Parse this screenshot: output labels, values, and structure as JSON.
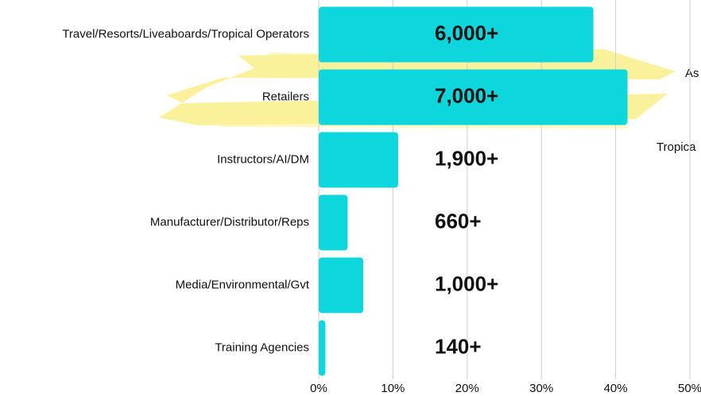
{
  "chart_data": {
    "type": "bar",
    "orientation": "horizontal",
    "categories": [
      "Travel/Resorts/Liveaboards/Tropical Operators",
      "Retailers",
      "Instructors/AI/DM",
      "Manufacturer/Distributor/Reps",
      "Media/Environmental/Gvt",
      "Training Agencies"
    ],
    "values": [
      37.0,
      41.6,
      10.7,
      3.9,
      6.0,
      0.9
    ],
    "count_labels": [
      "6,000+",
      "7,000+",
      "1,900+",
      "660+",
      "1,000+",
      "140+"
    ],
    "color": "#0dd6dc",
    "xlim": [
      0,
      50
    ],
    "xticks": [
      {
        "value": 0,
        "label": "0%"
      },
      {
        "value": 10,
        "label": "10%"
      },
      {
        "value": 20,
        "label": "20%"
      },
      {
        "value": 30,
        "label": "30%"
      },
      {
        "value": 40,
        "label": "40%"
      },
      {
        "value": 50,
        "label": "50%"
      }
    ],
    "grid": true,
    "background_texts": [
      "As",
      "Tropica"
    ]
  }
}
